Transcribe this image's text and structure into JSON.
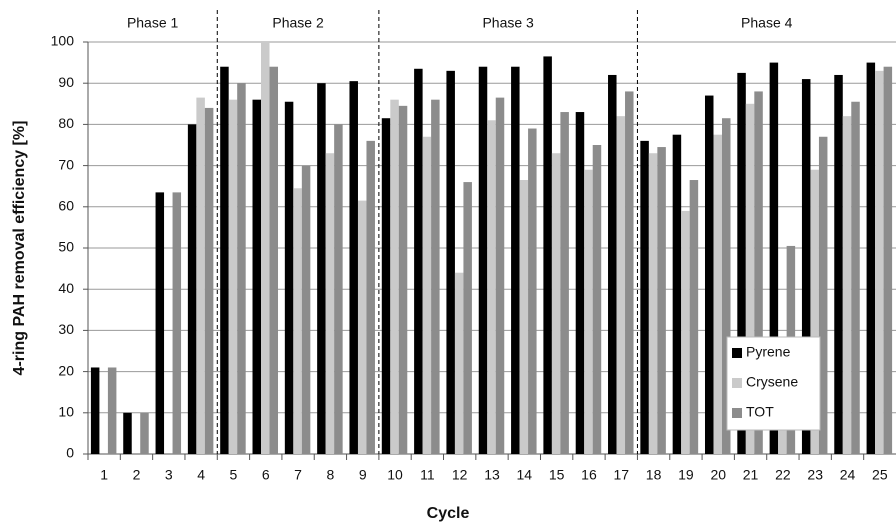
{
  "chart_data": {
    "type": "bar",
    "xlabel": "Cycle",
    "ylabel": "4-ring PAH removal efficiency [%]",
    "categories": [
      "1",
      "2",
      "3",
      "4",
      "5",
      "6",
      "7",
      "8",
      "9",
      "10",
      "11",
      "12",
      "13",
      "14",
      "15",
      "16",
      "17",
      "18",
      "19",
      "20",
      "21",
      "22",
      "23",
      "24",
      "25"
    ],
    "series": [
      {
        "name": "Pyrene",
        "color": "#000000",
        "values": [
          21,
          10,
          63.5,
          80,
          94,
          86,
          85.5,
          90,
          90.5,
          81.5,
          93.5,
          93,
          94,
          94,
          96.5,
          83,
          92,
          76,
          77.5,
          87,
          92.5,
          95,
          91,
          92,
          95
        ]
      },
      {
        "name": "Crysene",
        "color": "#cacaca",
        "values": [
          0,
          0,
          0,
          86.5,
          86,
          100,
          64.5,
          73,
          61.5,
          86,
          77,
          44,
          81,
          66.5,
          73,
          69,
          82,
          73,
          59,
          77.5,
          85,
          6,
          69,
          82,
          93
        ]
      },
      {
        "name": "TOT",
        "color": "#8c8c8c",
        "values": [
          21,
          10,
          63.5,
          84,
          90,
          94,
          70,
          80,
          76,
          84.5,
          86,
          66,
          86.5,
          79,
          83,
          75,
          88,
          74.5,
          66.5,
          81.5,
          88,
          50.5,
          77,
          85.5,
          94
        ]
      }
    ],
    "phases": [
      {
        "label": "Phase 1",
        "span": 4
      },
      {
        "label": "Phase 2",
        "span": 5
      },
      {
        "label": "Phase 3",
        "span": 8
      },
      {
        "label": "Phase 4",
        "span": 8
      }
    ],
    "ylim": [
      0,
      100
    ],
    "yticks": [
      0,
      10,
      20,
      30,
      40,
      50,
      60,
      70,
      80,
      90,
      100
    ],
    "grid": true,
    "legend": "lower right"
  }
}
